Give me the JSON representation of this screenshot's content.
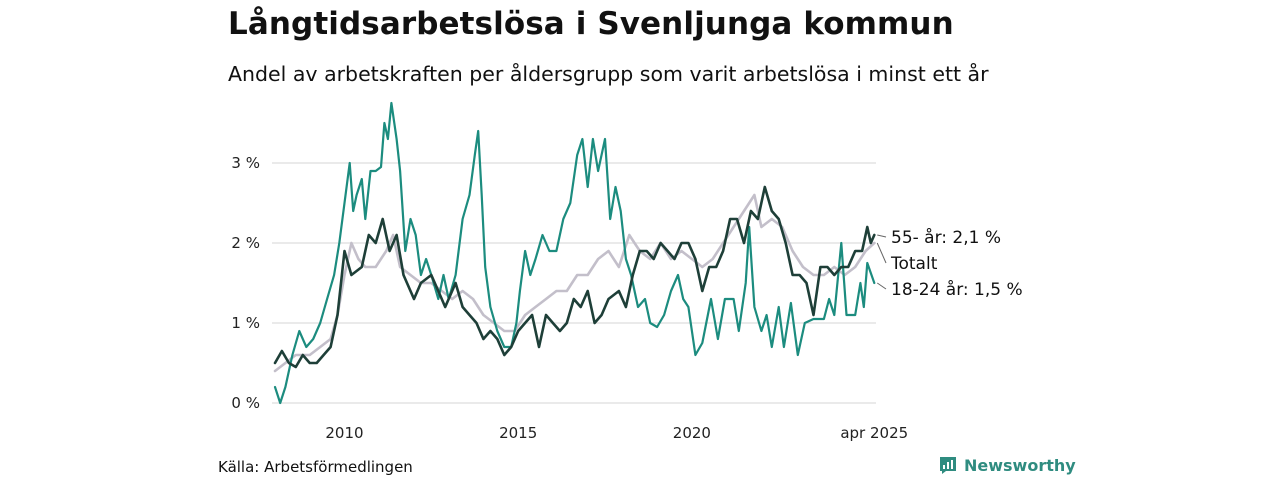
{
  "header": {
    "title": "Långtidsarbetslösa i Svenljunga kommun",
    "subtitle": "Andel av arbetskraften per åldersgrupp som varit arbetslösa i minst ett år"
  },
  "footer": {
    "source": "Källa: Arbetsförmedlingen",
    "brand": "Newsworthy"
  },
  "colors": {
    "totalt": "#c3bfca",
    "age_18_24": "#1c8c7f",
    "age_55": "#1e3f38",
    "grid": "#dddddd",
    "brand": "#2f8c80"
  },
  "chart_data": {
    "type": "line",
    "title": "Långtidsarbetslösa i Svenljunga kommun",
    "subtitle": "Andel av arbetskraften per åldersgrupp som varit arbetslösa i minst ett år",
    "xlabel": "",
    "ylabel": "",
    "xlim": [
      2008.0,
      2025.3
    ],
    "ylim": [
      0,
      3.8
    ],
    "grid": true,
    "legend": "end-of-line labels",
    "x_ticks": [
      {
        "value": 2010,
        "label": "2010"
      },
      {
        "value": 2015,
        "label": "2015"
      },
      {
        "value": 2020,
        "label": "2020"
      },
      {
        "value": 2025.25,
        "label": "apr 2025"
      }
    ],
    "y_ticks": [
      {
        "value": 0,
        "label": "0 %"
      },
      {
        "value": 1,
        "label": "1 %"
      },
      {
        "value": 2,
        "label": "2 %"
      },
      {
        "value": 3,
        "label": "3 %"
      }
    ],
    "series": [
      {
        "name": "Totalt",
        "key": "totalt",
        "end_label": "Totalt",
        "points": [
          [
            2008.0,
            0.4
          ],
          [
            2008.3,
            0.5
          ],
          [
            2008.6,
            0.6
          ],
          [
            2009.0,
            0.6
          ],
          [
            2009.3,
            0.7
          ],
          [
            2009.6,
            0.8
          ],
          [
            2009.8,
            1.1
          ],
          [
            2010.0,
            1.6
          ],
          [
            2010.2,
            2.0
          ],
          [
            2010.4,
            1.8
          ],
          [
            2010.6,
            1.7
          ],
          [
            2010.9,
            1.7
          ],
          [
            2011.2,
            1.9
          ],
          [
            2011.4,
            2.1
          ],
          [
            2011.6,
            1.7
          ],
          [
            2011.9,
            1.6
          ],
          [
            2012.2,
            1.5
          ],
          [
            2012.5,
            1.5
          ],
          [
            2012.8,
            1.4
          ],
          [
            2013.1,
            1.3
          ],
          [
            2013.4,
            1.4
          ],
          [
            2013.7,
            1.3
          ],
          [
            2014.0,
            1.1
          ],
          [
            2014.3,
            1.0
          ],
          [
            2014.6,
            0.9
          ],
          [
            2014.9,
            0.9
          ],
          [
            2015.2,
            1.1
          ],
          [
            2015.5,
            1.2
          ],
          [
            2015.8,
            1.3
          ],
          [
            2016.1,
            1.4
          ],
          [
            2016.4,
            1.4
          ],
          [
            2016.7,
            1.6
          ],
          [
            2017.0,
            1.6
          ],
          [
            2017.3,
            1.8
          ],
          [
            2017.6,
            1.9
          ],
          [
            2017.9,
            1.7
          ],
          [
            2018.2,
            2.1
          ],
          [
            2018.5,
            1.9
          ],
          [
            2018.8,
            1.8
          ],
          [
            2019.1,
            2.0
          ],
          [
            2019.4,
            1.8
          ],
          [
            2019.7,
            1.9
          ],
          [
            2020.0,
            1.8
          ],
          [
            2020.3,
            1.7
          ],
          [
            2020.6,
            1.8
          ],
          [
            2020.9,
            2.0
          ],
          [
            2021.2,
            2.2
          ],
          [
            2021.5,
            2.4
          ],
          [
            2021.8,
            2.6
          ],
          [
            2022.0,
            2.2
          ],
          [
            2022.3,
            2.3
          ],
          [
            2022.6,
            2.2
          ],
          [
            2022.9,
            1.9
          ],
          [
            2023.2,
            1.7
          ],
          [
            2023.5,
            1.6
          ],
          [
            2023.8,
            1.6
          ],
          [
            2024.1,
            1.7
          ],
          [
            2024.4,
            1.6
          ],
          [
            2024.7,
            1.7
          ],
          [
            2025.0,
            1.9
          ],
          [
            2025.25,
            2.0
          ]
        ]
      },
      {
        "name": "18-24 år",
        "key": "age_18_24",
        "end_label": "18-24 år: 1,5 %",
        "points": [
          [
            2008.0,
            0.2
          ],
          [
            2008.15,
            0.0
          ],
          [
            2008.3,
            0.2
          ],
          [
            2008.5,
            0.6
          ],
          [
            2008.7,
            0.9
          ],
          [
            2008.9,
            0.7
          ],
          [
            2009.1,
            0.8
          ],
          [
            2009.3,
            1.0
          ],
          [
            2009.5,
            1.3
          ],
          [
            2009.7,
            1.6
          ],
          [
            2009.85,
            2.0
          ],
          [
            2010.0,
            2.5
          ],
          [
            2010.15,
            3.0
          ],
          [
            2010.25,
            2.4
          ],
          [
            2010.35,
            2.6
          ],
          [
            2010.5,
            2.8
          ],
          [
            2010.6,
            2.3
          ],
          [
            2010.75,
            2.9
          ],
          [
            2010.9,
            2.9
          ],
          [
            2011.05,
            2.95
          ],
          [
            2011.15,
            3.5
          ],
          [
            2011.25,
            3.3
          ],
          [
            2011.35,
            3.75
          ],
          [
            2011.5,
            3.3
          ],
          [
            2011.6,
            2.9
          ],
          [
            2011.75,
            1.9
          ],
          [
            2011.9,
            2.3
          ],
          [
            2012.05,
            2.1
          ],
          [
            2012.2,
            1.6
          ],
          [
            2012.35,
            1.8
          ],
          [
            2012.5,
            1.6
          ],
          [
            2012.7,
            1.3
          ],
          [
            2012.85,
            1.6
          ],
          [
            2013.0,
            1.3
          ],
          [
            2013.2,
            1.6
          ],
          [
            2013.4,
            2.3
          ],
          [
            2013.6,
            2.6
          ],
          [
            2013.75,
            3.1
          ],
          [
            2013.85,
            3.4
          ],
          [
            2013.95,
            2.6
          ],
          [
            2014.05,
            1.7
          ],
          [
            2014.2,
            1.2
          ],
          [
            2014.4,
            0.9
          ],
          [
            2014.6,
            0.7
          ],
          [
            2014.8,
            0.7
          ],
          [
            2014.95,
            1.0
          ],
          [
            2015.05,
            1.4
          ],
          [
            2015.2,
            1.9
          ],
          [
            2015.35,
            1.6
          ],
          [
            2015.5,
            1.8
          ],
          [
            2015.7,
            2.1
          ],
          [
            2015.9,
            1.9
          ],
          [
            2016.1,
            1.9
          ],
          [
            2016.3,
            2.3
          ],
          [
            2016.5,
            2.5
          ],
          [
            2016.7,
            3.1
          ],
          [
            2016.85,
            3.3
          ],
          [
            2017.0,
            2.7
          ],
          [
            2017.15,
            3.3
          ],
          [
            2017.3,
            2.9
          ],
          [
            2017.5,
            3.3
          ],
          [
            2017.65,
            2.3
          ],
          [
            2017.8,
            2.7
          ],
          [
            2017.95,
            2.4
          ],
          [
            2018.1,
            1.8
          ],
          [
            2018.25,
            1.6
          ],
          [
            2018.45,
            1.2
          ],
          [
            2018.65,
            1.3
          ],
          [
            2018.8,
            1.0
          ],
          [
            2019.0,
            0.95
          ],
          [
            2019.2,
            1.1
          ],
          [
            2019.4,
            1.4
          ],
          [
            2019.6,
            1.6
          ],
          [
            2019.75,
            1.3
          ],
          [
            2019.9,
            1.2
          ],
          [
            2020.1,
            0.6
          ],
          [
            2020.3,
            0.75
          ],
          [
            2020.55,
            1.3
          ],
          [
            2020.75,
            0.8
          ],
          [
            2020.95,
            1.3
          ],
          [
            2021.2,
            1.3
          ],
          [
            2021.35,
            0.9
          ],
          [
            2021.55,
            1.5
          ],
          [
            2021.65,
            2.2
          ],
          [
            2021.8,
            1.2
          ],
          [
            2022.0,
            0.9
          ],
          [
            2022.15,
            1.1
          ],
          [
            2022.3,
            0.7
          ],
          [
            2022.5,
            1.2
          ],
          [
            2022.65,
            0.7
          ],
          [
            2022.85,
            1.25
          ],
          [
            2023.05,
            0.6
          ],
          [
            2023.25,
            1.0
          ],
          [
            2023.5,
            1.05
          ],
          [
            2023.8,
            1.05
          ],
          [
            2023.95,
            1.3
          ],
          [
            2024.1,
            1.1
          ],
          [
            2024.3,
            2.0
          ],
          [
            2024.45,
            1.1
          ],
          [
            2024.7,
            1.1
          ],
          [
            2024.85,
            1.5
          ],
          [
            2024.95,
            1.2
          ],
          [
            2025.05,
            1.75
          ],
          [
            2025.25,
            1.5
          ]
        ]
      },
      {
        "name": "55- år",
        "key": "age_55",
        "end_label": "55- år: 2,1 %",
        "points": [
          [
            2008.0,
            0.5
          ],
          [
            2008.2,
            0.65
          ],
          [
            2008.4,
            0.5
          ],
          [
            2008.6,
            0.45
          ],
          [
            2008.8,
            0.6
          ],
          [
            2009.0,
            0.5
          ],
          [
            2009.2,
            0.5
          ],
          [
            2009.4,
            0.6
          ],
          [
            2009.6,
            0.7
          ],
          [
            2009.8,
            1.1
          ],
          [
            2010.0,
            1.9
          ],
          [
            2010.2,
            1.6
          ],
          [
            2010.5,
            1.7
          ],
          [
            2010.7,
            2.1
          ],
          [
            2010.9,
            2.0
          ],
          [
            2011.1,
            2.3
          ],
          [
            2011.3,
            1.9
          ],
          [
            2011.5,
            2.1
          ],
          [
            2011.7,
            1.6
          ],
          [
            2012.0,
            1.3
          ],
          [
            2012.2,
            1.5
          ],
          [
            2012.5,
            1.6
          ],
          [
            2012.7,
            1.4
          ],
          [
            2012.9,
            1.2
          ],
          [
            2013.2,
            1.5
          ],
          [
            2013.4,
            1.2
          ],
          [
            2013.6,
            1.1
          ],
          [
            2013.8,
            1.0
          ],
          [
            2014.0,
            0.8
          ],
          [
            2014.2,
            0.9
          ],
          [
            2014.4,
            0.8
          ],
          [
            2014.6,
            0.6
          ],
          [
            2014.8,
            0.7
          ],
          [
            2015.0,
            0.9
          ],
          [
            2015.2,
            1.0
          ],
          [
            2015.4,
            1.1
          ],
          [
            2015.6,
            0.7
          ],
          [
            2015.8,
            1.1
          ],
          [
            2016.0,
            1.0
          ],
          [
            2016.2,
            0.9
          ],
          [
            2016.4,
            1.0
          ],
          [
            2016.6,
            1.3
          ],
          [
            2016.8,
            1.2
          ],
          [
            2017.0,
            1.4
          ],
          [
            2017.2,
            1.0
          ],
          [
            2017.4,
            1.1
          ],
          [
            2017.6,
            1.3
          ],
          [
            2017.9,
            1.4
          ],
          [
            2018.1,
            1.2
          ],
          [
            2018.3,
            1.6
          ],
          [
            2018.5,
            1.9
          ],
          [
            2018.7,
            1.9
          ],
          [
            2018.9,
            1.8
          ],
          [
            2019.1,
            2.0
          ],
          [
            2019.3,
            1.9
          ],
          [
            2019.5,
            1.8
          ],
          [
            2019.7,
            2.0
          ],
          [
            2019.9,
            2.0
          ],
          [
            2020.1,
            1.8
          ],
          [
            2020.3,
            1.4
          ],
          [
            2020.5,
            1.7
          ],
          [
            2020.7,
            1.7
          ],
          [
            2020.9,
            1.9
          ],
          [
            2021.1,
            2.3
          ],
          [
            2021.3,
            2.3
          ],
          [
            2021.5,
            2.0
          ],
          [
            2021.7,
            2.4
          ],
          [
            2021.9,
            2.3
          ],
          [
            2022.1,
            2.7
          ],
          [
            2022.3,
            2.4
          ],
          [
            2022.5,
            2.3
          ],
          [
            2022.7,
            2.0
          ],
          [
            2022.9,
            1.6
          ],
          [
            2023.1,
            1.6
          ],
          [
            2023.3,
            1.5
          ],
          [
            2023.5,
            1.1
          ],
          [
            2023.7,
            1.7
          ],
          [
            2023.9,
            1.7
          ],
          [
            2024.1,
            1.6
          ],
          [
            2024.3,
            1.7
          ],
          [
            2024.5,
            1.7
          ],
          [
            2024.7,
            1.9
          ],
          [
            2024.9,
            1.9
          ],
          [
            2025.05,
            2.2
          ],
          [
            2025.15,
            2.0
          ],
          [
            2025.25,
            2.1
          ]
        ]
      }
    ]
  }
}
